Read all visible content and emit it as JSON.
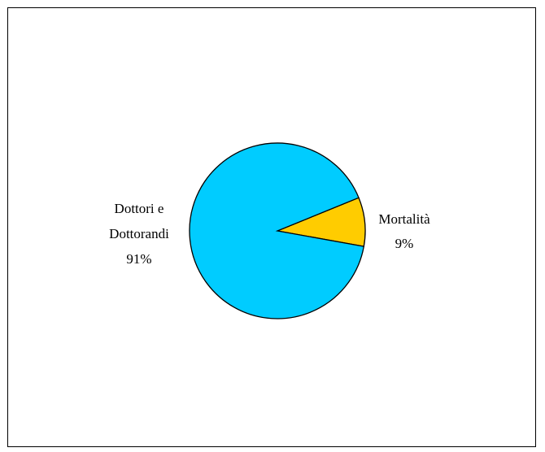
{
  "chart_data": {
    "type": "pie",
    "title": "",
    "slices": [
      {
        "label_lines": [
          "Mortalità"
        ],
        "percent_label": "9%",
        "value": 9,
        "color": "#FFCC00"
      },
      {
        "label_lines": [
          "Dottori e",
          "Dottorandi"
        ],
        "percent_label": "91%",
        "value": 91,
        "color": "#00CCFF"
      }
    ],
    "legend": "none"
  }
}
